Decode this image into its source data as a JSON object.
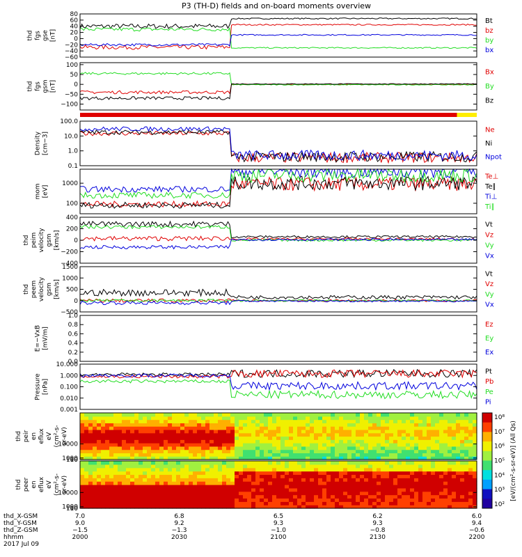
{
  "title": "P3 (TH-D) fields and on-board moments overview",
  "colors": {
    "black": "#000000",
    "red": "#e00000",
    "green": "#22dd22",
    "blue": "#0000dd",
    "yellow": "#ffee00"
  },
  "chart_data": [
    {
      "id": "fgs_gse",
      "type": "line",
      "ylabel": [
        "thd",
        "fgs",
        "gse",
        "[nT]"
      ],
      "ylim": [
        -60,
        80
      ],
      "ticks": [
        "80",
        "60",
        "40",
        "20",
        "0",
        "−20",
        "−40",
        "−60"
      ],
      "tickvals": [
        80,
        60,
        40,
        20,
        0,
        -20,
        -40,
        -60
      ],
      "series": [
        {
          "name": "Bt",
          "color": "black",
          "before": 40,
          "after": 65,
          "noise_b": 8,
          "noise_a": 2
        },
        {
          "name": "bz",
          "color": "red",
          "before": -28,
          "after": 45,
          "noise_b": 7,
          "noise_a": 2
        },
        {
          "name": "by",
          "color": "green",
          "before": 30,
          "after": -30,
          "noise_b": 6,
          "noise_a": 2
        },
        {
          "name": "bx",
          "color": "blue",
          "before": -20,
          "after": 12,
          "noise_b": 4,
          "noise_a": 2
        }
      ]
    },
    {
      "id": "fgs_gsm",
      "type": "line",
      "ylabel": [
        "thd",
        "fgs",
        "gsm",
        "[nT]"
      ],
      "ylim": [
        -130,
        110
      ],
      "ticks": [
        "100",
        "50",
        "0",
        "−50",
        "−100"
      ],
      "tickvals": [
        100,
        50,
        0,
        -50,
        -100
      ],
      "series": [
        {
          "name": "Bx",
          "color": "red",
          "before": -40,
          "after": 0,
          "noise_b": 8,
          "noise_a": 2
        },
        {
          "name": "By",
          "color": "green",
          "before": 55,
          "after": -2,
          "noise_b": 6,
          "noise_a": 2
        },
        {
          "name": "Bz",
          "color": "black",
          "before": -70,
          "after": 2,
          "noise_b": 8,
          "noise_a": 2
        }
      ]
    },
    {
      "id": "density",
      "type": "line",
      "log": true,
      "ylabel": [
        "Density",
        "[cm−3]"
      ],
      "ylim": [
        0.1,
        100
      ],
      "ticks": [
        "100.0",
        "10.0",
        "1.0",
        "0.1"
      ],
      "tickvals": [
        100,
        10,
        1,
        0.1
      ],
      "series": [
        {
          "name": "Ne",
          "color": "red",
          "before": 15,
          "after": 0.35
        },
        {
          "name": "Ni",
          "color": "black",
          "before": 18,
          "after": 0.4
        },
        {
          "name": "Npot",
          "color": "blue",
          "before": 30,
          "after": 0.5
        }
      ]
    },
    {
      "id": "temperature",
      "type": "line",
      "log": true,
      "ylabel": [
        "mom",
        "[eV]"
      ],
      "ylim": [
        30,
        5000
      ],
      "ticks": [
        "1000",
        "100"
      ],
      "tickvals": [
        1000,
        100
      ],
      "series": [
        {
          "name": "Te⊥",
          "color": "red",
          "before": 90,
          "after": 900
        },
        {
          "name": "Te∥",
          "color": "black",
          "before": 80,
          "after": 1000
        },
        {
          "name": "Ti⊥",
          "color": "blue",
          "before": 500,
          "after": 4000
        },
        {
          "name": "Ti∥",
          "color": "green",
          "before": 250,
          "after": 2500
        }
      ]
    },
    {
      "id": "peim",
      "type": "line",
      "ylabel": [
        "thd",
        "peim",
        "velocity",
        "gsm",
        "[km/s]"
      ],
      "ylim": [
        -400,
        400
      ],
      "ticks": [
        "400",
        "200",
        "0",
        "−200",
        "−400"
      ],
      "tickvals": [
        400,
        200,
        0,
        -200,
        -400
      ],
      "series": [
        {
          "name": "Vt",
          "color": "black",
          "before": 280,
          "after": 60,
          "noise_b": 50,
          "noise_a": 20
        },
        {
          "name": "Vz",
          "color": "red",
          "before": 30,
          "after": 20,
          "noise_b": 40,
          "noise_a": 20
        },
        {
          "name": "Vy",
          "color": "green",
          "before": 230,
          "after": 0,
          "noise_b": 30,
          "noise_a": 20
        },
        {
          "name": "Vx",
          "color": "blue",
          "before": -120,
          "after": 10,
          "noise_b": 30,
          "noise_a": 20
        }
      ]
    },
    {
      "id": "peem",
      "type": "line",
      "ylabel": [
        "thd",
        "peem",
        "velocity",
        "gsm",
        "[km/s]"
      ],
      "ylim": [
        -500,
        1500
      ],
      "ticks": [
        "1500",
        "1000",
        "500",
        "0",
        "−500"
      ],
      "tickvals": [
        1500,
        1000,
        500,
        0,
        -500
      ],
      "series": [
        {
          "name": "Vt",
          "color": "black",
          "before": 350,
          "after": 150,
          "noise_b": 150,
          "noise_a": 80
        },
        {
          "name": "Vz",
          "color": "red",
          "before": 0,
          "after": 0,
          "noise_b": 80,
          "noise_a": 50
        },
        {
          "name": "Vy",
          "color": "green",
          "before": 0,
          "after": 0,
          "noise_b": 60,
          "noise_a": 40
        },
        {
          "name": "Vx",
          "color": "blue",
          "before": -100,
          "after": -20,
          "noise_b": 80,
          "noise_a": 40
        }
      ]
    },
    {
      "id": "efield",
      "type": "line",
      "ylabel": [
        "E=−VxB",
        "[mV/m]"
      ],
      "ylim": [
        0,
        1
      ],
      "ticks": [
        "1.0",
        "0.8",
        "0.6",
        "0.4",
        "0.2",
        "0.0"
      ],
      "tickvals": [
        1.0,
        0.8,
        0.6,
        0.4,
        0.2,
        0.0
      ],
      "series": [
        {
          "name": "Ez",
          "color": "red"
        },
        {
          "name": "Ey",
          "color": "green"
        },
        {
          "name": "Ex",
          "color": "blue"
        }
      ]
    },
    {
      "id": "pressure",
      "type": "line",
      "log": true,
      "ylabel": [
        "Pressure",
        "[nPa]"
      ],
      "ylim": [
        0.001,
        10
      ],
      "ticks": [
        "10.000",
        "1.000",
        "0.100",
        "0.010",
        "0.001"
      ],
      "tickvals": [
        10,
        1,
        0.1,
        0.01,
        0.001
      ],
      "series": [
        {
          "name": "Pt",
          "color": "black",
          "before": 1.2,
          "after": 1.5
        },
        {
          "name": "Pb",
          "color": "red",
          "before": 0.8,
          "after": 1.4
        },
        {
          "name": "Pe",
          "color": "green",
          "before": 0.3,
          "after": 0.02
        },
        {
          "name": "Pi",
          "color": "blue",
          "before": 1.0,
          "after": 0.12
        }
      ]
    },
    {
      "id": "peir",
      "type": "heatmap",
      "ylabel": [
        "thd",
        "peir",
        "en",
        "eflux",
        "eV",
        "(cm²-s-",
        "sr-eV)"
      ],
      "ylim": [
        5,
        30000
      ],
      "ticks": [
        "10000",
        "1000",
        "100",
        "10"
      ],
      "tickvals": [
        10000,
        1000,
        100,
        10
      ]
    },
    {
      "id": "peer",
      "type": "heatmap",
      "ylabel": [
        "thd",
        "peer",
        "en",
        "eflux",
        "eV",
        "(cm²-s-",
        "sr-eV)"
      ],
      "ylim": [
        5,
        30000
      ],
      "ticks": [
        "10000",
        "1000",
        "100",
        "10"
      ],
      "tickvals": [
        10000,
        1000,
        100,
        10
      ]
    }
  ],
  "colorbar": {
    "label": "[eV/(cm²-s-sr-eV)] (All Qs)",
    "ticks": [
      "10⁸",
      "10⁷",
      "10⁶",
      "10⁵",
      "10⁴",
      "10³",
      "10²"
    ]
  },
  "xaxis": {
    "rows": [
      {
        "label": "thd_X-GSM",
        "vals": [
          "7.0",
          "6.8",
          "6.5",
          "6.2",
          "6.0"
        ]
      },
      {
        "label": "thd_Y-GSM",
        "vals": [
          "9.0",
          "9.2",
          "9.3",
          "9.3",
          "9.4"
        ]
      },
      {
        "label": "thd_Z-GSM",
        "vals": [
          "−1.5",
          "−1.3",
          "−1.0",
          "−0.8",
          "−0.6"
        ]
      },
      {
        "label": "hhmm",
        "vals": [
          "2000",
          "2030",
          "2100",
          "2130",
          "2200"
        ]
      }
    ],
    "date": "2017 Jul 09"
  }
}
